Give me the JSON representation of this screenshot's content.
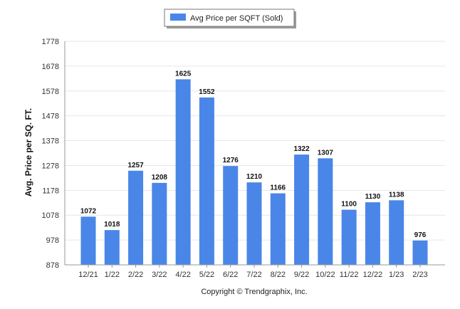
{
  "legend": {
    "label": "Avg Price per SQFT (Sold)"
  },
  "copyright": "Copyright © Trendgraphix, Inc.",
  "colors": {
    "bar": "#4a86e8",
    "grid": "#e6e6e6",
    "axis": "#999999"
  },
  "chart_data": {
    "type": "bar",
    "categories": [
      "12/21",
      "1/22",
      "2/22",
      "3/22",
      "4/22",
      "5/22",
      "6/22",
      "7/22",
      "8/22",
      "9/22",
      "10/22",
      "11/22",
      "12/22",
      "1/23",
      "2/23"
    ],
    "series": [
      {
        "name": "Avg Price per SQFT (Sold)",
        "values": [
          1072,
          1018,
          1257,
          1208,
          1625,
          1552,
          1276,
          1210,
          1166,
          1322,
          1307,
          1100,
          1130,
          1138,
          976
        ]
      }
    ],
    "ylabel": "Avg. Price per SQ. FT.",
    "xlabel": "",
    "ylim": [
      878,
      1778
    ],
    "yticks": [
      878,
      978,
      1078,
      1178,
      1278,
      1378,
      1478,
      1578,
      1678,
      1778
    ],
    "grid": true,
    "legend_position": "top-center",
    "data_labels": true
  }
}
